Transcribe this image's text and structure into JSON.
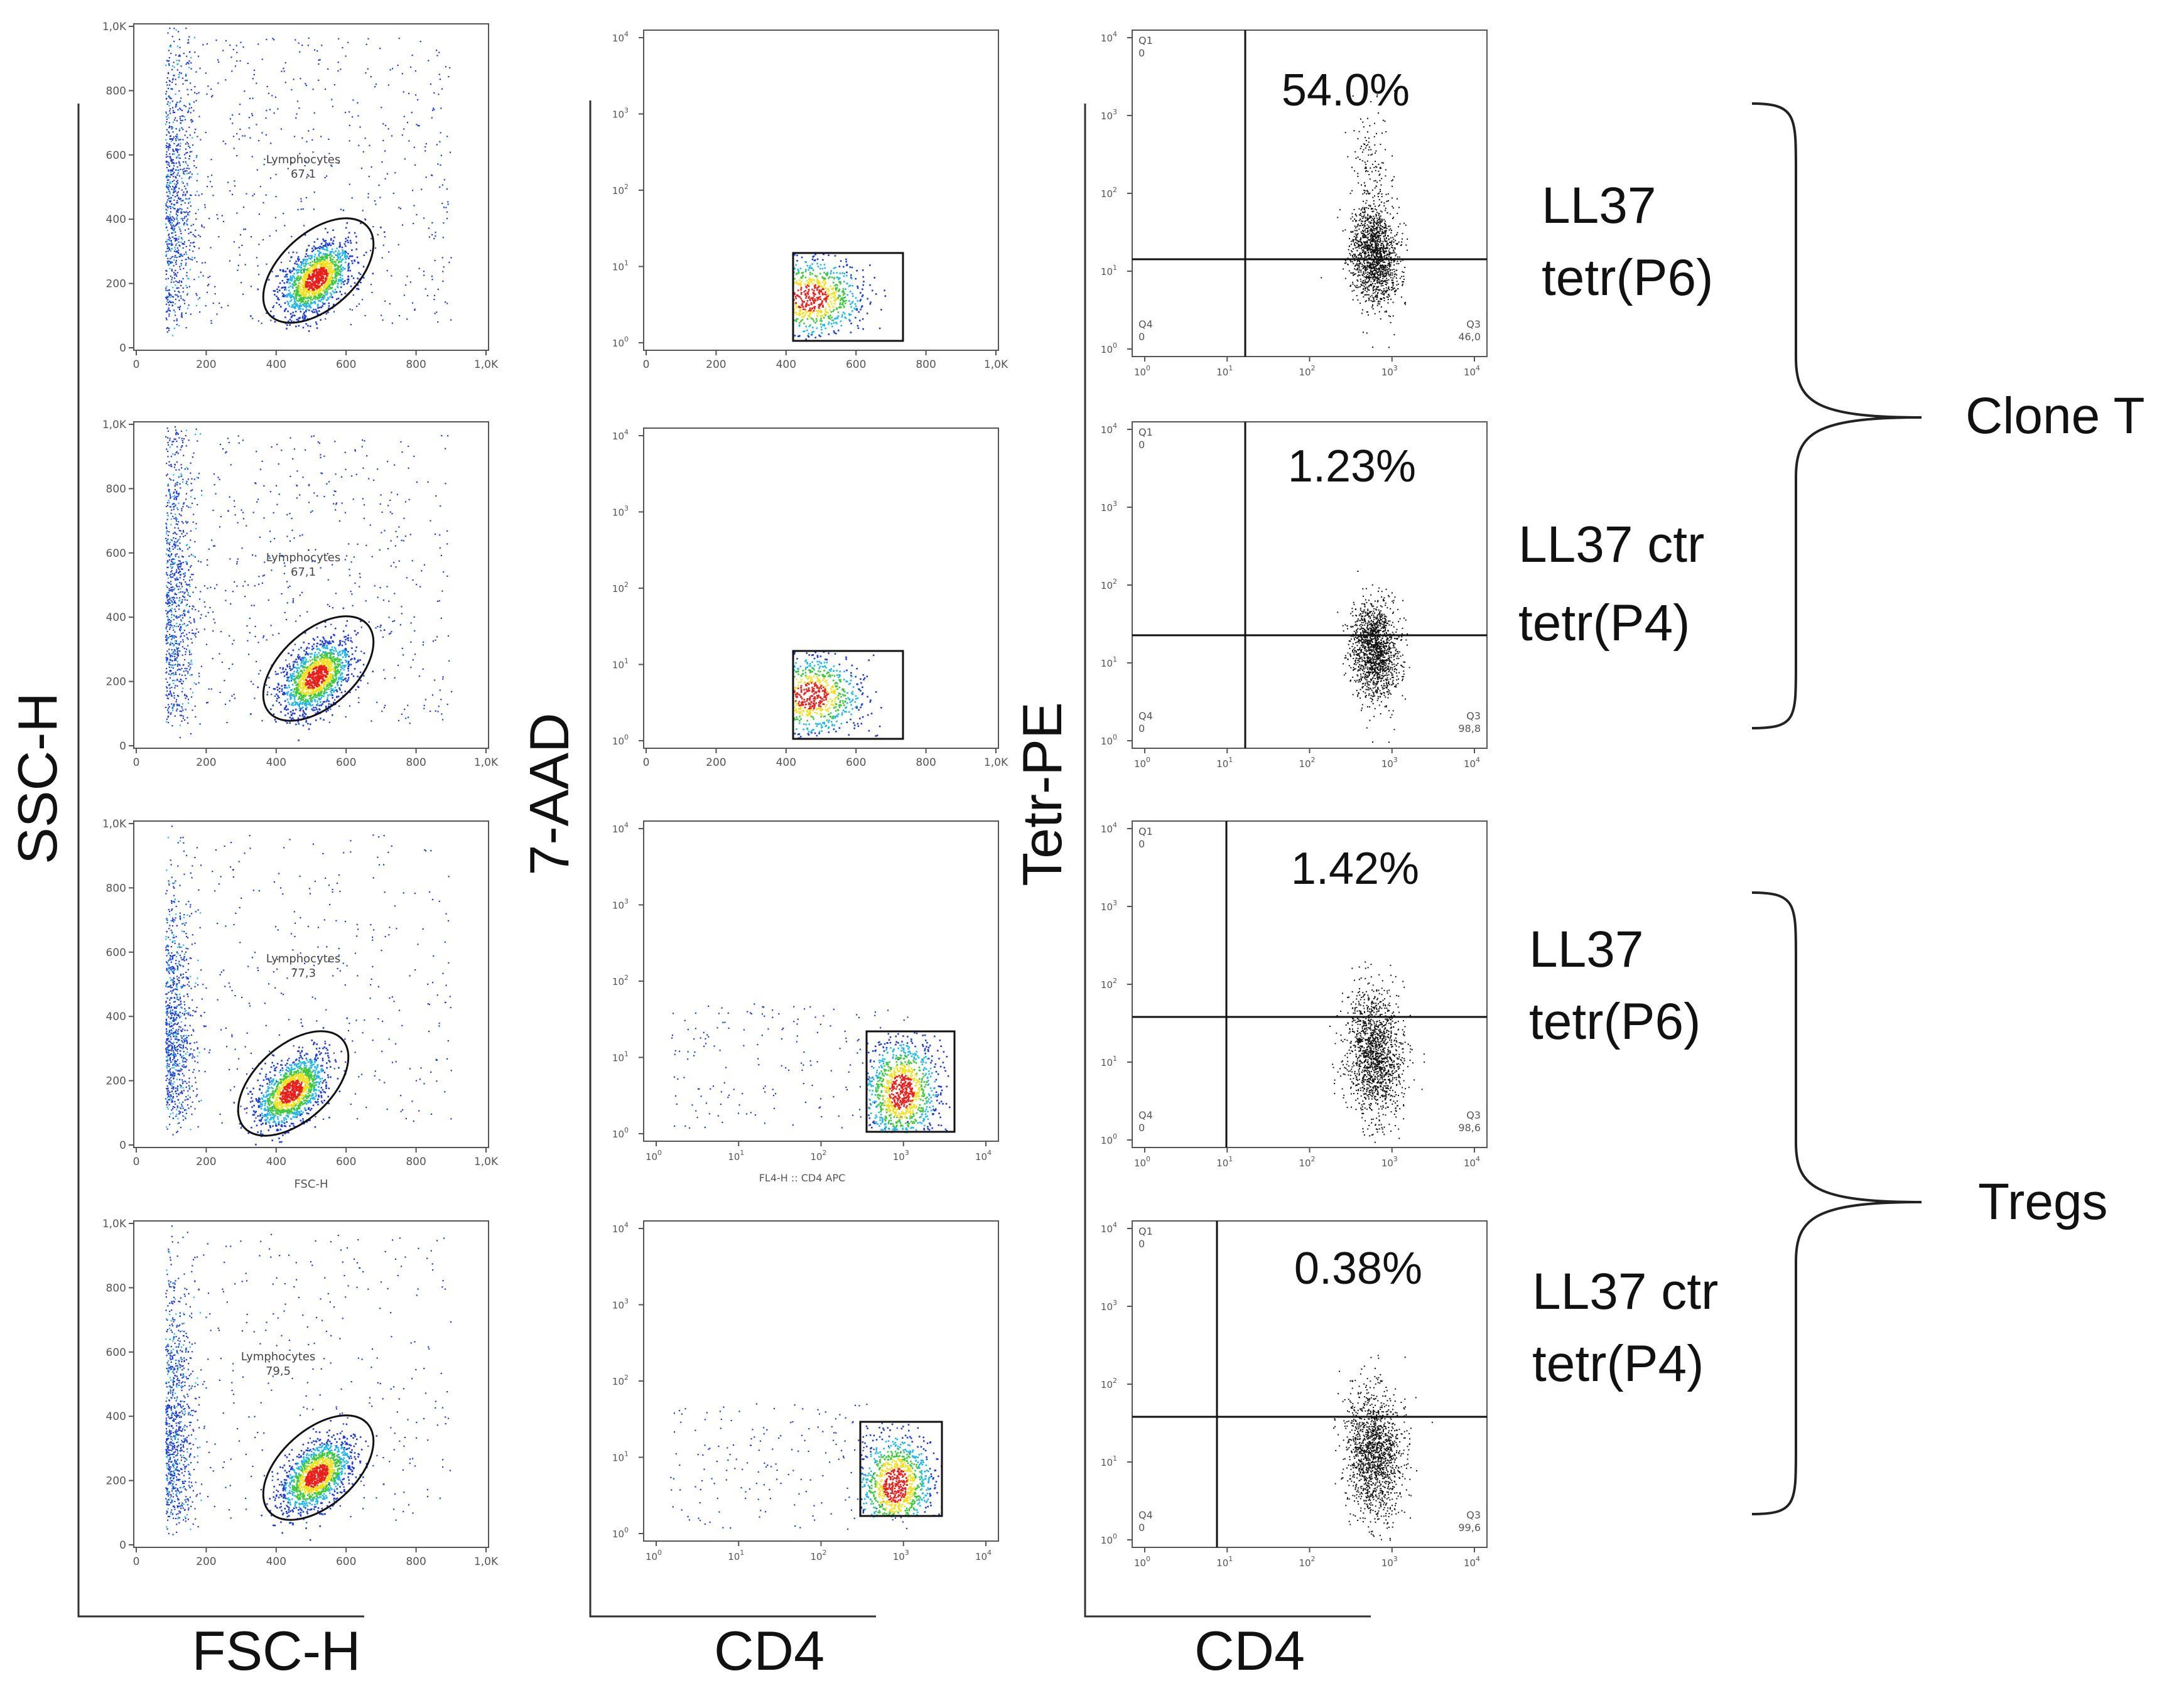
{
  "chart_data": {
    "type": "scatter",
    "columns": [
      {
        "name": "scatter-gating",
        "x_axis_label": "FSC-H",
        "y_axis_label": "SSC-H",
        "x_ticks": [
          "0",
          "200",
          "400",
          "600",
          "800",
          "1,0K"
        ],
        "y_ticks": [
          "0",
          "200",
          "400",
          "600",
          "800",
          "1,0K"
        ],
        "xlim": [
          0,
          1024
        ],
        "ylim": [
          0,
          1024
        ]
      },
      {
        "name": "viability",
        "x_axis_label": "CD4",
        "y_axis_label": "7-AAD",
        "linear_ticks": [
          "0",
          "200",
          "400",
          "600",
          "800",
          "1,0K"
        ],
        "log_tick_base": "10",
        "log_tick_exponents": [
          "0",
          "1",
          "2",
          "3",
          "4"
        ]
      },
      {
        "name": "tetramer",
        "x_axis_label": "CD4",
        "y_axis_label": "Tetr-PE",
        "log_tick_base": "10",
        "log_tick_exponents": [
          "0",
          "1",
          "2",
          "3",
          "4"
        ]
      }
    ],
    "panel_extra_label": "FSC-H",
    "viability_extra_label": "FL4-H :: CD4 APC",
    "rows": [
      {
        "gate_name": "Lymphocytes",
        "gate_value": "67,1",
        "viability_x_scale": "linear",
        "quadrant_q1_label": "Q1",
        "quadrant_q1_value": "0",
        "quadrant_q4_label": "Q4",
        "quadrant_q4_value": "0",
        "quadrant_q3_label": "Q3",
        "quadrant_q3_value": "46,0",
        "tetramer_positive_pct": "54.0%",
        "condition_line1": "LL37",
        "condition_line2": "tetr(P6)"
      },
      {
        "gate_name": "Lymphocytes",
        "gate_value": "67,1",
        "viability_x_scale": "linear",
        "quadrant_q1_label": "Q1",
        "quadrant_q1_value": "0",
        "quadrant_q4_label": "Q4",
        "quadrant_q4_value": "0",
        "quadrant_q3_label": "Q3",
        "quadrant_q3_value": "98,8",
        "tetramer_positive_pct": "1.23%",
        "condition_line1": "LL37 ctr",
        "condition_line2": "tetr(P4)"
      },
      {
        "gate_name": "Lymphocytes",
        "gate_value": "77,3",
        "viability_x_scale": "log",
        "quadrant_q1_label": "Q1",
        "quadrant_q1_value": "0",
        "quadrant_q4_label": "Q4",
        "quadrant_q4_value": "0",
        "quadrant_q3_label": "Q3",
        "quadrant_q3_value": "98,6",
        "tetramer_positive_pct": "1.42%",
        "condition_line1": "LL37",
        "condition_line2": "tetr(P6)"
      },
      {
        "gate_name": "Lymphocytes",
        "gate_value": "79,5",
        "viability_x_scale": "log",
        "quadrant_q1_label": "Q1",
        "quadrant_q1_value": "0",
        "quadrant_q4_label": "Q4",
        "quadrant_q4_value": "0",
        "quadrant_q3_label": "Q3",
        "quadrant_q3_value": "99,6",
        "tetramer_positive_pct": "0.38%",
        "condition_line1": "LL37 ctr",
        "condition_line2": "tetr(P4)"
      }
    ],
    "groups": [
      {
        "label": "Clone T",
        "rows": [
          0,
          1
        ]
      },
      {
        "label": "Tregs",
        "rows": [
          2,
          3
        ]
      }
    ],
    "colors": {
      "density_low": "#1f3bd6",
      "density_mid_low": "#22b7e6",
      "density_mid": "#3fc83f",
      "density_high": "#f0e020",
      "density_peak": "#e8201c",
      "tetramer_dots": "#111111",
      "axis": "#333333",
      "panel_border": "#555555"
    }
  }
}
